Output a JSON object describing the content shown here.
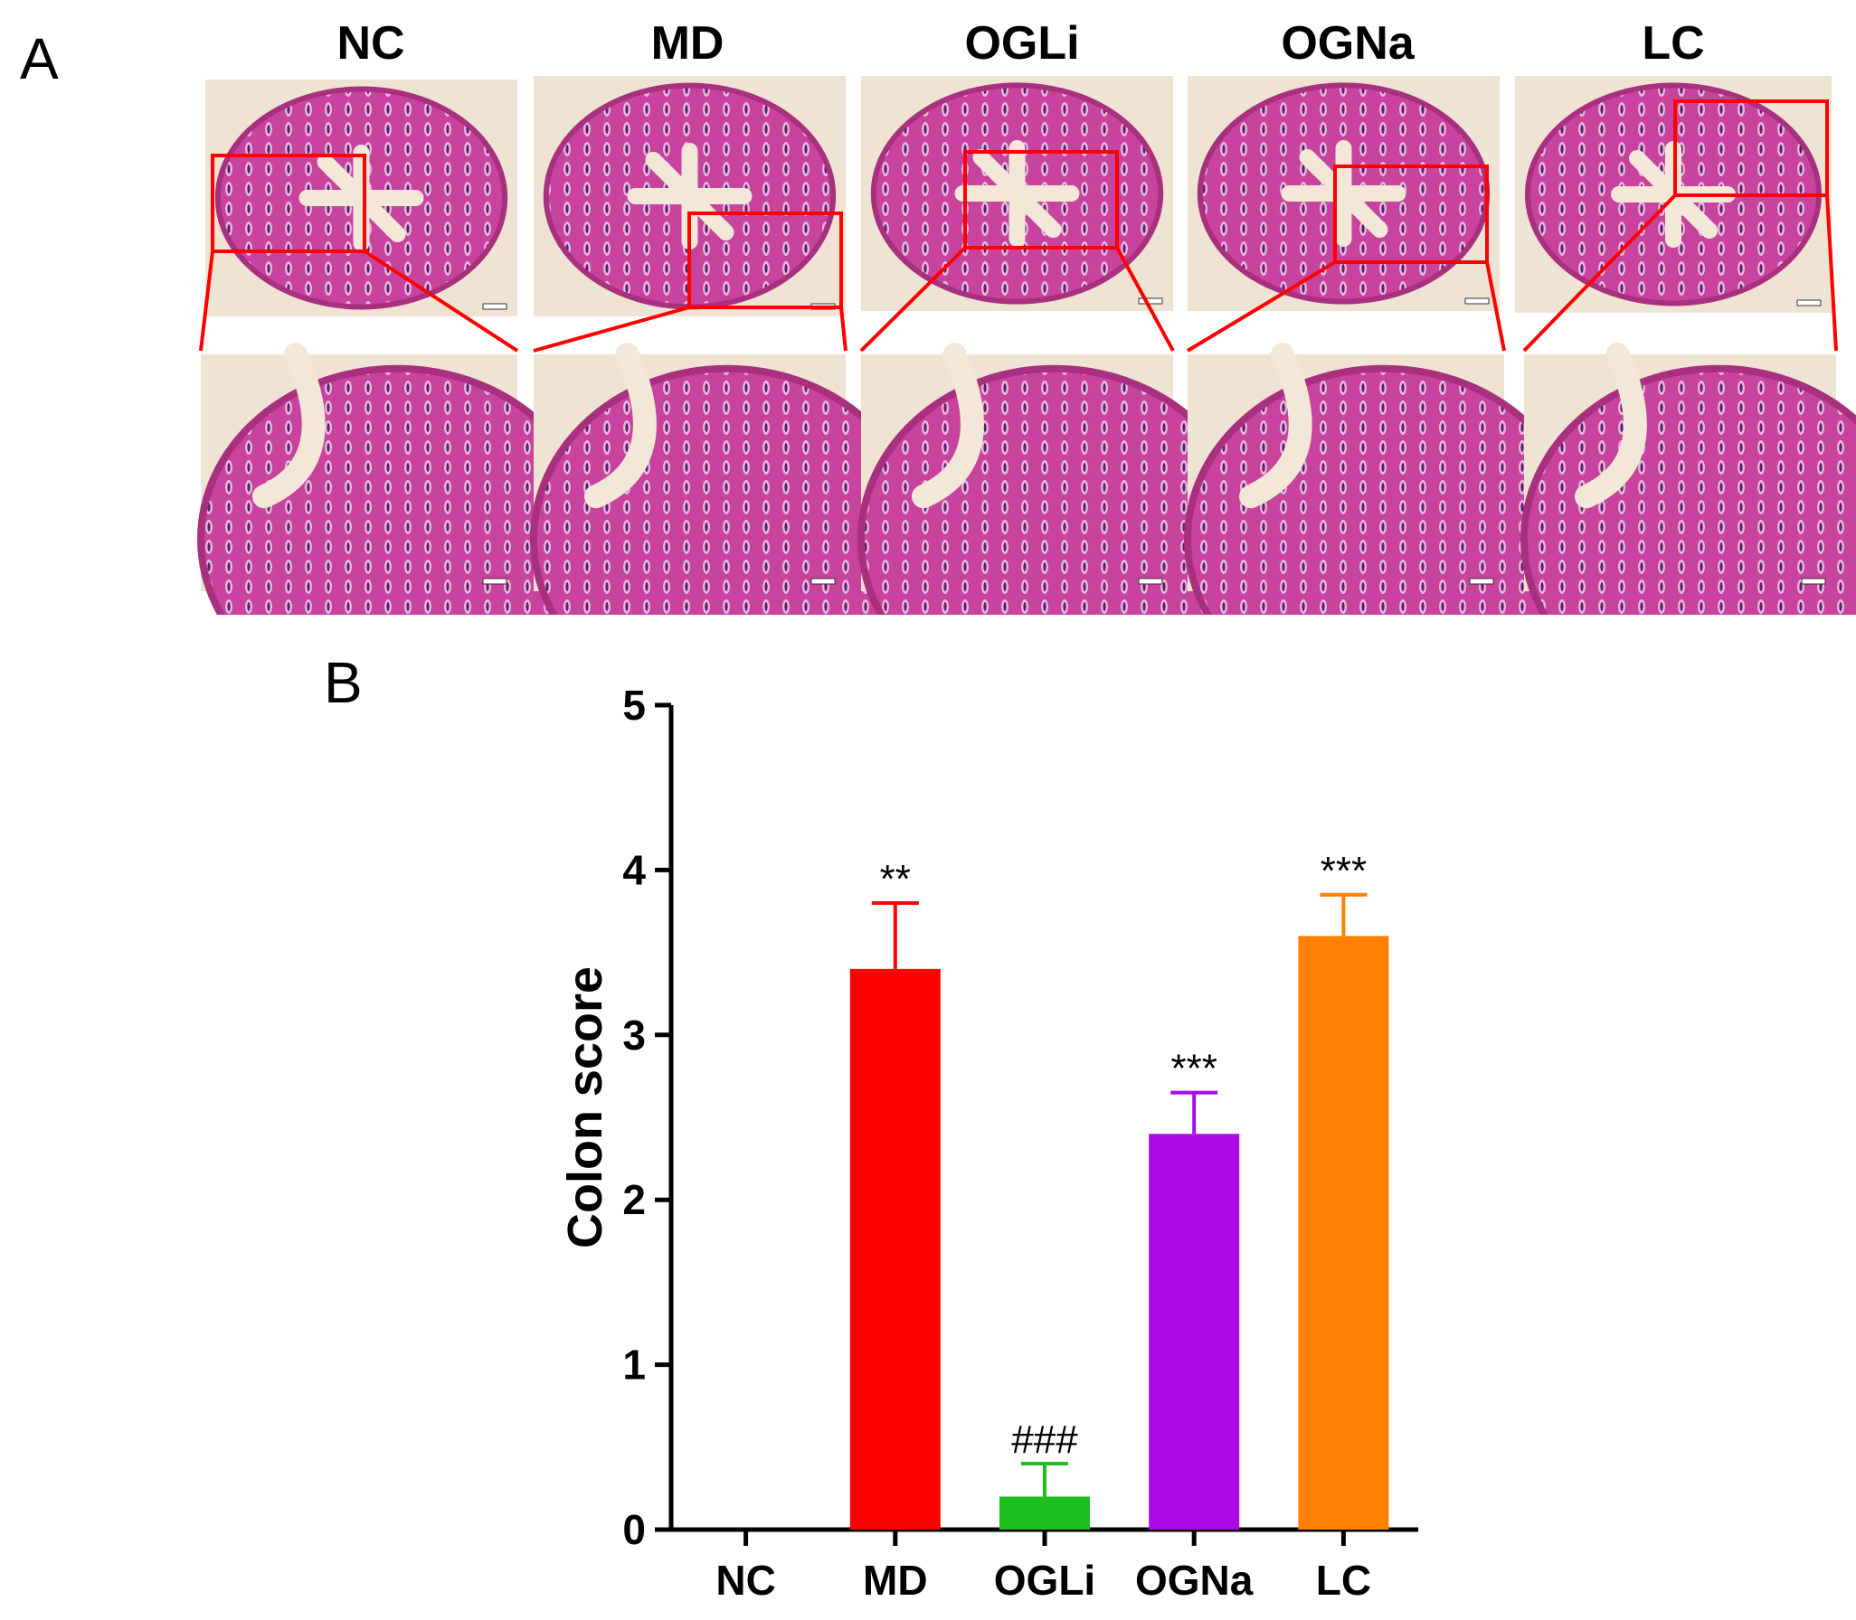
{
  "panel_a": {
    "letter": "A",
    "groups": [
      "NC",
      "MD",
      "OGLi",
      "OGNa",
      "LC"
    ]
  },
  "panel_b": {
    "letter": "B"
  },
  "colors": {
    "highlight": "#ff0000",
    "tissue": "#c7439e",
    "background_tissue": "#efe3d3"
  },
  "chart_data": {
    "type": "bar",
    "categories": [
      "NC",
      "MD",
      "OGLi",
      "OGNa",
      "LC"
    ],
    "values": [
      0,
      3.4,
      0.2,
      2.4,
      3.6
    ],
    "errors": [
      0,
      0.4,
      0.2,
      0.25,
      0.25
    ],
    "annotations": [
      "",
      "**",
      "###",
      "***",
      "***"
    ],
    "colors": [
      "#000000",
      "#ff0000",
      "#1ebe1e",
      "#aa0ae6",
      "#ff8000"
    ],
    "ylabel": "Colon score",
    "xlabel": "",
    "ylim": [
      0,
      5
    ],
    "yticks": [
      "0",
      "1",
      "2",
      "3",
      "4",
      "5"
    ],
    "grid": false
  }
}
